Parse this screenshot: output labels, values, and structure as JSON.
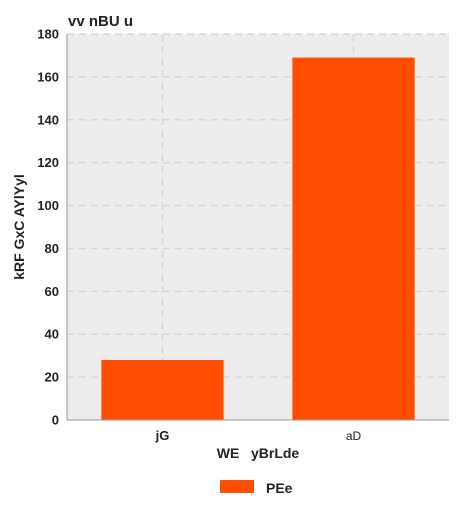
{
  "chart_data": {
    "type": "bar",
    "title": "vv nBU u",
    "xlabel": "WE   yBrLde",
    "ylabel": "kRF GxC AYlYyl",
    "categories": [
      "jG",
      "aD"
    ],
    "category_bold": [
      true,
      false
    ],
    "series": [
      {
        "name": "PEe",
        "values": [
          28,
          169
        ],
        "color": "#ff4e00"
      }
    ],
    "ylim": [
      0,
      180
    ],
    "yticks": [
      0,
      20,
      40,
      60,
      80,
      100,
      120,
      140,
      160,
      180
    ],
    "grid": true,
    "legend_position": "bottom-center",
    "plot_background": "#ececec"
  }
}
